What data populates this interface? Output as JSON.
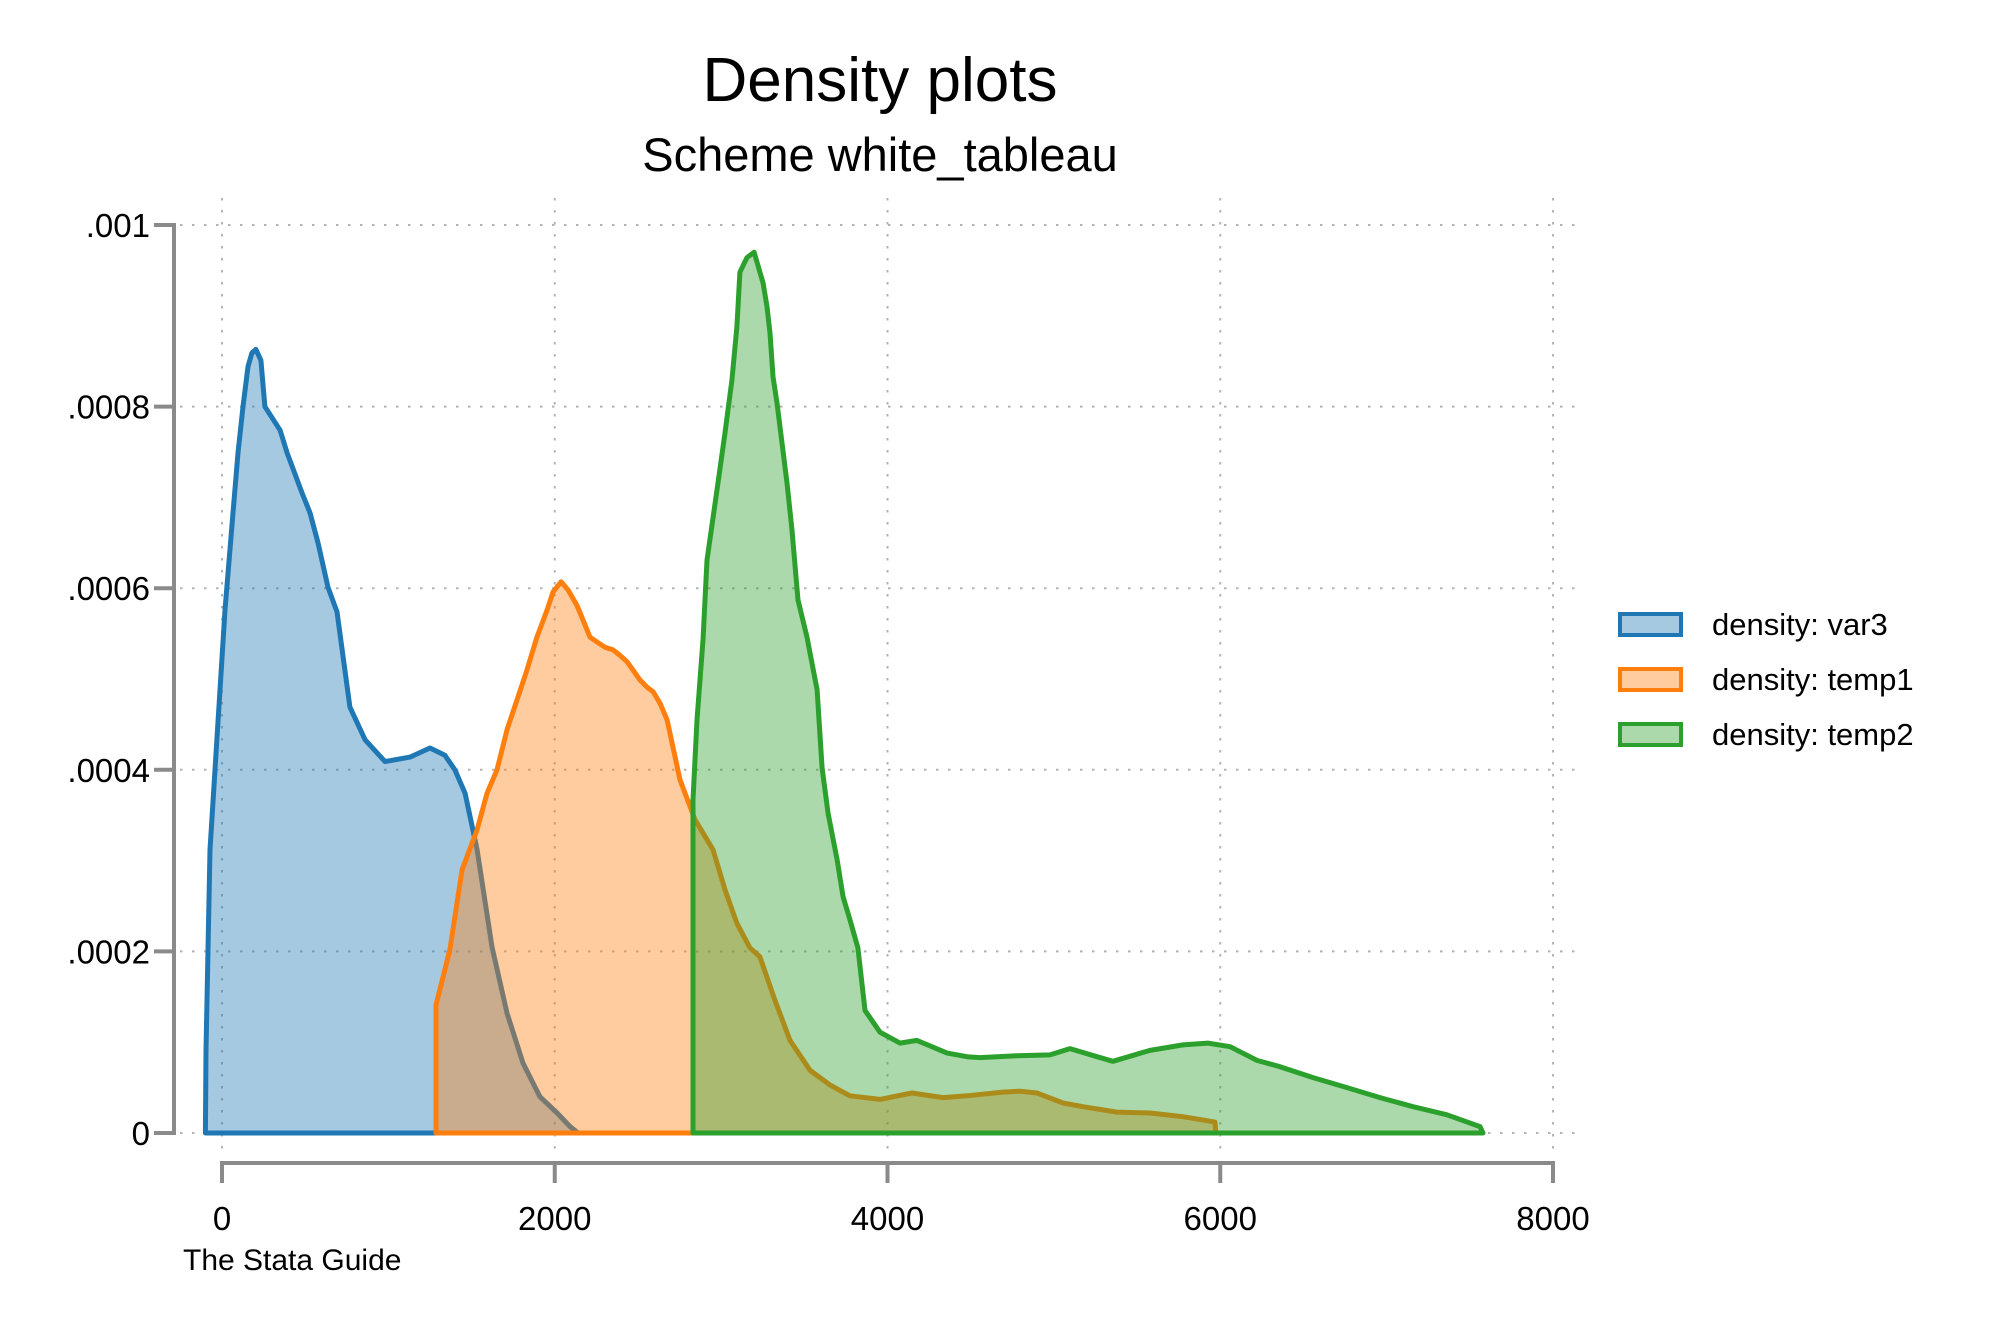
{
  "header": {
    "title": "Density plots",
    "subtitle": "Scheme white_tableau"
  },
  "footer": {
    "caption": "The Stata Guide"
  },
  "legend": {
    "position": "right-outside",
    "items": [
      {
        "label": "density: var3",
        "color": "#1f77b4"
      },
      {
        "label": "density: temp1",
        "color": "#ff7f0e"
      },
      {
        "label": "density: temp2",
        "color": "#2ca02c"
      }
    ]
  },
  "style": {
    "axis_color": "#8a8a8a",
    "grid_color": "#b3b3b3",
    "tick_label_color": "#000000",
    "fill_opacity": 0.4,
    "line_width": 5,
    "background": "#ffffff"
  },
  "chart_data": {
    "type": "area",
    "title": "Density plots",
    "subtitle": "Scheme white_tableau",
    "xlabel": "",
    "ylabel": "",
    "xlim": [
      0,
      8000
    ],
    "ylim": [
      0,
      0.001
    ],
    "grid": "dotted",
    "legend_position": "right",
    "x_ticks": [
      {
        "v": 0,
        "label": "0"
      },
      {
        "v": 2000,
        "label": "2000"
      },
      {
        "v": 4000,
        "label": "4000"
      },
      {
        "v": 6000,
        "label": "6000"
      },
      {
        "v": 8000,
        "label": "8000"
      }
    ],
    "y_scale_note": "y point values are density * 1e-6; multiply by y_scale for true density",
    "y_scale": 1e-06,
    "y_ticks": [
      {
        "v": 0,
        "label": "0"
      },
      {
        "v": 200,
        "label": ".0002"
      },
      {
        "v": 400,
        "label": ".0004"
      },
      {
        "v": 600,
        "label": ".0006"
      },
      {
        "v": 800,
        "label": ".0008"
      },
      {
        "v": 1000,
        "label": ".001"
      }
    ],
    "series": [
      {
        "name": "density: var3",
        "color": "#1f77b4",
        "points": [
          [
            -100,
            0
          ],
          [
            -96,
            91
          ],
          [
            -84,
            202
          ],
          [
            -72,
            312
          ],
          [
            -42,
            400
          ],
          [
            -12,
            488
          ],
          [
            18,
            576
          ],
          [
            66,
            683
          ],
          [
            96,
            749
          ],
          [
            126,
            800
          ],
          [
            156,
            844
          ],
          [
            180,
            859
          ],
          [
            204,
            863
          ],
          [
            234,
            851
          ],
          [
            258,
            800
          ],
          [
            349,
            774
          ],
          [
            391,
            749
          ],
          [
            481,
            705
          ],
          [
            529,
            683
          ],
          [
            577,
            650
          ],
          [
            637,
            601
          ],
          [
            691,
            574
          ],
          [
            769,
            469
          ],
          [
            860,
            433
          ],
          [
            980,
            409
          ],
          [
            1130,
            414
          ],
          [
            1250,
            424
          ],
          [
            1340,
            416
          ],
          [
            1400,
            400
          ],
          [
            1461,
            374
          ],
          [
            1533,
            312
          ],
          [
            1623,
            205
          ],
          [
            1713,
            132
          ],
          [
            1809,
            77
          ],
          [
            1911,
            40
          ],
          [
            2014,
            22
          ],
          [
            2092,
            7
          ],
          [
            2140,
            0
          ]
        ]
      },
      {
        "name": "density: temp1",
        "color": "#ff7f0e",
        "points": [
          [
            1286,
            0
          ],
          [
            1286,
            141
          ],
          [
            1370,
            202
          ],
          [
            1443,
            290
          ],
          [
            1533,
            334
          ],
          [
            1593,
            374
          ],
          [
            1653,
            400
          ],
          [
            1713,
            444
          ],
          [
            1773,
            477
          ],
          [
            1833,
            510
          ],
          [
            1893,
            546
          ],
          [
            1954,
            576
          ],
          [
            1990,
            596
          ],
          [
            2038,
            607
          ],
          [
            2080,
            598
          ],
          [
            2134,
            581
          ],
          [
            2170,
            565
          ],
          [
            2212,
            546
          ],
          [
            2260,
            540
          ],
          [
            2302,
            535
          ],
          [
            2350,
            532
          ],
          [
            2392,
            526
          ],
          [
            2434,
            519
          ],
          [
            2470,
            510
          ],
          [
            2512,
            499
          ],
          [
            2555,
            491
          ],
          [
            2591,
            486
          ],
          [
            2633,
            473
          ],
          [
            2675,
            455
          ],
          [
            2753,
            389
          ],
          [
            2843,
            345
          ],
          [
            2951,
            312
          ],
          [
            3023,
            268
          ],
          [
            3095,
            231
          ],
          [
            3173,
            204
          ],
          [
            3233,
            194
          ],
          [
            3324,
            146
          ],
          [
            3414,
            102
          ],
          [
            3534,
            69
          ],
          [
            3654,
            53
          ],
          [
            3774,
            41
          ],
          [
            3955,
            37
          ],
          [
            4147,
            44
          ],
          [
            4333,
            39
          ],
          [
            4478,
            41
          ],
          [
            4694,
            45
          ],
          [
            4796,
            46
          ],
          [
            4898,
            44
          ],
          [
            5055,
            33
          ],
          [
            5175,
            29
          ],
          [
            5379,
            23
          ],
          [
            5578,
            22
          ],
          [
            5776,
            18
          ],
          [
            5908,
            14
          ],
          [
            5968,
            12
          ],
          [
            5974,
            0
          ]
        ]
      },
      {
        "name": "density: temp2",
        "color": "#2ca02c",
        "points": [
          [
            2831,
            0
          ],
          [
            2831,
            367
          ],
          [
            2855,
            455
          ],
          [
            2891,
            543
          ],
          [
            2915,
            631
          ],
          [
            2981,
            716
          ],
          [
            3023,
            771
          ],
          [
            3065,
            829
          ],
          [
            3095,
            888
          ],
          [
            3113,
            948
          ],
          [
            3155,
            964
          ],
          [
            3198,
            970
          ],
          [
            3252,
            936
          ],
          [
            3276,
            910
          ],
          [
            3294,
            881
          ],
          [
            3312,
            833
          ],
          [
            3336,
            804
          ],
          [
            3366,
            760
          ],
          [
            3396,
            716
          ],
          [
            3426,
            664
          ],
          [
            3462,
            587
          ],
          [
            3516,
            546
          ],
          [
            3577,
            488
          ],
          [
            3607,
            402
          ],
          [
            3643,
            352
          ],
          [
            3697,
            301
          ],
          [
            3733,
            260
          ],
          [
            3774,
            235
          ],
          [
            3822,
            204
          ],
          [
            3865,
            135
          ],
          [
            3955,
            111
          ],
          [
            4075,
            99
          ],
          [
            4177,
            102
          ],
          [
            4358,
            88
          ],
          [
            4478,
            84
          ],
          [
            4556,
            83
          ],
          [
            4778,
            85
          ],
          [
            4977,
            86
          ],
          [
            5097,
            93
          ],
          [
            5259,
            84
          ],
          [
            5355,
            79
          ],
          [
            5578,
            91
          ],
          [
            5776,
            97
          ],
          [
            5926,
            99
          ],
          [
            6059,
            95
          ],
          [
            6221,
            80
          ],
          [
            6359,
            73
          ],
          [
            6558,
            61
          ],
          [
            6762,
            50
          ],
          [
            6960,
            39
          ],
          [
            7159,
            29
          ],
          [
            7363,
            20
          ],
          [
            7561,
            7
          ],
          [
            7579,
            0
          ]
        ]
      }
    ]
  }
}
